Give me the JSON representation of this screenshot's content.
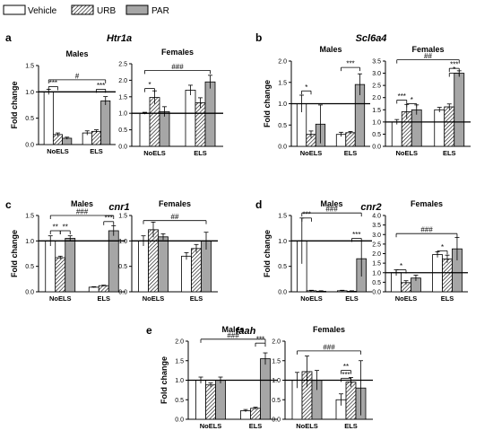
{
  "legend": [
    {
      "key": "vehicle",
      "label": "Vehicle",
      "fill": "white"
    },
    {
      "key": "urb",
      "label": "URB",
      "fill": "hatch"
    },
    {
      "key": "par",
      "label": "PAR",
      "fill": "#a6a6a6"
    }
  ],
  "colors": {
    "par": "#a6a6a6",
    "vehicle": "#ffffff",
    "axis": "#000000"
  },
  "chart_data": [
    {
      "panel": "a",
      "gene": "Htr1a",
      "group": "Males",
      "type": "bar",
      "ylabel": "Fold change",
      "yticks": [
        "0.0",
        "0.5",
        "1.0",
        "1.5"
      ],
      "ylim": [
        0,
        1.5
      ],
      "reference_line": 1.0,
      "categories": [
        "NoELS",
        "ELS"
      ],
      "series": [
        {
          "name": "Vehicle",
          "values": [
            1.0,
            0.22
          ],
          "errors": [
            0.05,
            0.04
          ]
        },
        {
          "name": "URB",
          "values": [
            0.19,
            0.25
          ],
          "errors": [
            0.03,
            0.03
          ]
        },
        {
          "name": "PAR",
          "values": [
            0.12,
            0.83
          ],
          "errors": [
            0.02,
            0.08
          ]
        }
      ],
      "annotations": [
        "***",
        "***",
        "#"
      ]
    },
    {
      "panel": "a",
      "gene": "Htr1a",
      "group": "Females",
      "type": "bar",
      "yticks": [
        "0.0",
        "0.5",
        "1.0",
        "1.5",
        "2.0",
        "2.5"
      ],
      "ylim": [
        0,
        2.5
      ],
      "reference_line": 1.0,
      "categories": [
        "NoELS",
        "ELS"
      ],
      "series": [
        {
          "name": "Vehicle",
          "values": [
            1.0,
            1.7
          ],
          "errors": [
            0.03,
            0.15
          ]
        },
        {
          "name": "URB",
          "values": [
            1.48,
            1.32
          ],
          "errors": [
            0.2,
            0.15
          ]
        },
        {
          "name": "PAR",
          "values": [
            1.05,
            1.95
          ],
          "errors": [
            0.15,
            0.2
          ]
        }
      ],
      "annotations": [
        "*",
        "###"
      ]
    },
    {
      "panel": "b",
      "gene": "Scl6a4",
      "group": "Males",
      "type": "bar",
      "ylabel": "Fold change",
      "yticks": [
        "0.0",
        "0.5",
        "1.0",
        "1.5",
        "2.0"
      ],
      "ylim": [
        0,
        2.0
      ],
      "reference_line": 1.0,
      "categories": [
        "NoELS",
        "ELS"
      ],
      "series": [
        {
          "name": "Vehicle",
          "values": [
            1.0,
            0.28
          ],
          "errors": [
            0.2,
            0.05
          ]
        },
        {
          "name": "URB",
          "values": [
            0.28,
            0.32
          ],
          "errors": [
            0.08,
            0.03
          ]
        },
        {
          "name": "PAR",
          "values": [
            0.52,
            1.45
          ],
          "errors": [
            0.45,
            0.25
          ]
        }
      ],
      "annotations": [
        "*",
        "***"
      ]
    },
    {
      "panel": "b",
      "gene": "Scl6a4",
      "group": "Females",
      "type": "bar",
      "yticks": [
        "0.0",
        "0.5",
        "1.0",
        "1.5",
        "2.0",
        "2.5",
        "3.0",
        "3.5"
      ],
      "ylim": [
        0,
        3.5
      ],
      "reference_line": 1.0,
      "categories": [
        "NoELS",
        "ELS"
      ],
      "series": [
        {
          "name": "Vehicle",
          "values": [
            1.0,
            1.5
          ],
          "errors": [
            0.1,
            0.1
          ]
        },
        {
          "name": "URB",
          "values": [
            1.42,
            1.62
          ],
          "errors": [
            0.3,
            0.12
          ]
        },
        {
          "name": "PAR",
          "values": [
            1.5,
            3.0
          ],
          "errors": [
            0.2,
            0.1
          ]
        }
      ],
      "annotations": [
        "***",
        "*",
        "***",
        "*",
        "##"
      ]
    },
    {
      "panel": "c",
      "gene": "cnr1",
      "group": "Males",
      "type": "bar",
      "ylabel": "Fold change",
      "yticks": [
        "0.0",
        "0.5",
        "1.0",
        "1.5"
      ],
      "ylim": [
        0,
        1.5
      ],
      "reference_line": 1.0,
      "categories": [
        "NoELS",
        "ELS"
      ],
      "series": [
        {
          "name": "Vehicle",
          "values": [
            1.0,
            0.09
          ],
          "errors": [
            0.1,
            0.01
          ]
        },
        {
          "name": "URB",
          "values": [
            0.67,
            0.12
          ],
          "errors": [
            0.03,
            0.01
          ]
        },
        {
          "name": "PAR",
          "values": [
            1.05,
            1.2
          ],
          "errors": [
            0.05,
            0.1
          ]
        }
      ],
      "annotations": [
        "**",
        "**",
        "***",
        "###"
      ]
    },
    {
      "panel": "c",
      "gene": "cnr1",
      "group": "Females",
      "type": "bar",
      "yticks": [
        "0.0",
        "0.5",
        "1.0",
        "1.5"
      ],
      "ylim": [
        0,
        1.5
      ],
      "reference_line": 1.0,
      "categories": [
        "NoELS",
        "ELS"
      ],
      "series": [
        {
          "name": "Vehicle",
          "values": [
            1.0,
            0.7
          ],
          "errors": [
            0.1,
            0.07
          ]
        },
        {
          "name": "URB",
          "values": [
            1.22,
            0.85
          ],
          "errors": [
            0.15,
            0.08
          ]
        },
        {
          "name": "PAR",
          "values": [
            1.08,
            1.0
          ],
          "errors": [
            0.06,
            0.17
          ]
        }
      ],
      "annotations": [
        "##"
      ]
    },
    {
      "panel": "d",
      "gene": "cnr2",
      "group": "Males",
      "type": "bar",
      "ylabel": "Fold change",
      "yticks": [
        "0.0",
        "0.5",
        "1.0",
        "1.5"
      ],
      "ylim": [
        0,
        1.5
      ],
      "reference_line": 1.0,
      "categories": [
        "NoELS",
        "ELS"
      ],
      "series": [
        {
          "name": "Vehicle",
          "values": [
            1.0,
            0.02
          ],
          "errors": [
            0.45,
            0.01
          ]
        },
        {
          "name": "URB",
          "values": [
            0.02,
            0.01
          ],
          "errors": [
            0.01,
            0.01
          ]
        },
        {
          "name": "PAR",
          "values": [
            0.01,
            0.65
          ],
          "errors": [
            0.01,
            0.35
          ]
        }
      ],
      "annotations": [
        "***",
        "***",
        "###"
      ]
    },
    {
      "panel": "d",
      "gene": "cnr2",
      "group": "Females",
      "type": "bar",
      "yticks": [
        "0.0",
        "0.5",
        "1.0",
        "1.5",
        "2.0",
        "2.5",
        "3.0",
        "3.5",
        "4.0"
      ],
      "ylim": [
        0,
        4.0
      ],
      "reference_line": 1.0,
      "categories": [
        "NoELS",
        "ELS"
      ],
      "series": [
        {
          "name": "Vehicle",
          "values": [
            1.0,
            1.95
          ],
          "errors": [
            0.15,
            0.15
          ]
        },
        {
          "name": "URB",
          "values": [
            0.48,
            1.72
          ],
          "errors": [
            0.1,
            0.2
          ]
        },
        {
          "name": "PAR",
          "values": [
            0.72,
            2.25
          ],
          "errors": [
            0.15,
            0.6
          ]
        }
      ],
      "annotations": [
        "*",
        "*",
        "###"
      ]
    },
    {
      "panel": "e",
      "gene": "faah",
      "group": "Males",
      "type": "bar",
      "ylabel": "Fold change",
      "yticks": [
        "0.0",
        "0.5",
        "1.0",
        "1.5",
        "2.0"
      ],
      "ylim": [
        0,
        2.0
      ],
      "reference_line": 1.0,
      "categories": [
        "NoELS",
        "ELS"
      ],
      "series": [
        {
          "name": "Vehicle",
          "values": [
            1.0,
            0.22
          ],
          "errors": [
            0.08,
            0.03
          ]
        },
        {
          "name": "URB",
          "values": [
            0.88,
            0.28
          ],
          "errors": [
            0.05,
            0.03
          ]
        },
        {
          "name": "PAR",
          "values": [
            1.0,
            1.55
          ],
          "errors": [
            0.08,
            0.15
          ]
        }
      ],
      "annotations": [
        "***",
        "###"
      ]
    },
    {
      "panel": "e",
      "gene": "faah",
      "group": "Females",
      "type": "bar",
      "yticks": [
        "0.0",
        "0.5",
        "1.0",
        "1.5",
        "2.0"
      ],
      "ylim": [
        0,
        2.0
      ],
      "reference_line": 1.0,
      "categories": [
        "NoELS",
        "ELS"
      ],
      "series": [
        {
          "name": "Vehicle",
          "values": [
            1.0,
            0.5
          ],
          "errors": [
            0.2,
            0.15
          ]
        },
        {
          "name": "URB",
          "values": [
            1.22,
            0.95
          ],
          "errors": [
            0.4,
            0.12
          ]
        },
        {
          "name": "PAR",
          "values": [
            1.0,
            0.8
          ],
          "errors": [
            0.25,
            0.7
          ]
        }
      ],
      "annotations": [
        "**",
        "***",
        "###"
      ]
    }
  ]
}
